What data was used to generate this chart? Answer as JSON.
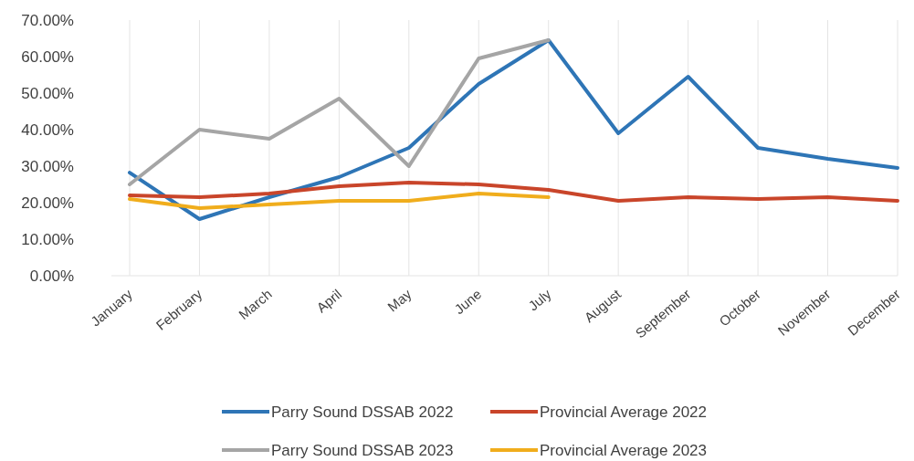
{
  "chart_data": {
    "type": "line",
    "categories": [
      "January",
      "February",
      "March",
      "April",
      "May",
      "June",
      "July",
      "August",
      "September",
      "October",
      "November",
      "December"
    ],
    "series": [
      {
        "name": "Parry Sound DSSAB 2022",
        "color": "#2e75b6",
        "values": [
          28.2,
          15.5,
          21.5,
          27,
          35,
          52.5,
          64.5,
          39,
          54.5,
          35,
          32,
          29.5
        ]
      },
      {
        "name": "Provincial Average 2022",
        "color": "#c9452a",
        "values": [
          22,
          21.5,
          22.5,
          24.5,
          25.5,
          25,
          23.5,
          20.5,
          21.5,
          21,
          21.5,
          20.5
        ]
      },
      {
        "name": "Parry Sound DSSAB 2023",
        "color": "#a5a5a5",
        "values": [
          25,
          40,
          37.5,
          48.5,
          30,
          59.5,
          64.5,
          null,
          null,
          null,
          null,
          null
        ]
      },
      {
        "name": "Provincial Average 2023",
        "color": "#f0ad1c",
        "values": [
          21,
          18.5,
          19.5,
          20.5,
          20.5,
          22.5,
          21.5,
          null,
          null,
          null,
          null,
          null
        ]
      }
    ],
    "ylim": [
      0,
      70
    ],
    "yticks": [
      {
        "value": 0,
        "label": "0.00%"
      },
      {
        "value": 10,
        "label": "10.00%"
      },
      {
        "value": 20,
        "label": "20.00%"
      },
      {
        "value": 30,
        "label": "30.00%"
      },
      {
        "value": 40,
        "label": "40.00%"
      },
      {
        "value": 50,
        "label": "50.00%"
      },
      {
        "value": 60,
        "label": "60.00%"
      },
      {
        "value": 70,
        "label": "70.00%"
      }
    ],
    "grid": "x",
    "legend": "bottom",
    "marker": "none",
    "line_style": "solid"
  }
}
